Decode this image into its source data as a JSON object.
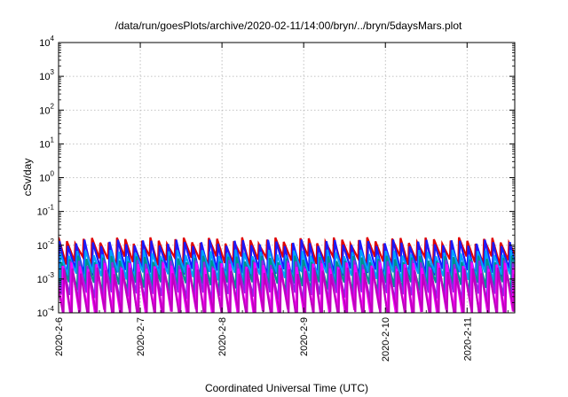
{
  "chart_data": {
    "type": "line",
    "title": "/data/run/goesPlots/archive/2020-02-11/14:00/bryn/../bryn/5daysMars.plot",
    "xlabel": "Coordinated Universal Time (UTC)",
    "ylabel": "cSv/day",
    "yscale": "log",
    "ylim": [
      0.0001,
      10000
    ],
    "y_ticks": [
      {
        "base": "10",
        "exp": "-4",
        "value": 0.0001
      },
      {
        "base": "10",
        "exp": "-3",
        "value": 0.001
      },
      {
        "base": "10",
        "exp": "-2",
        "value": 0.01
      },
      {
        "base": "10",
        "exp": "-1",
        "value": 0.1
      },
      {
        "base": "10",
        "exp": "0",
        "value": 1
      },
      {
        "base": "10",
        "exp": "1",
        "value": 10
      },
      {
        "base": "10",
        "exp": "2",
        "value": 100
      },
      {
        "base": "10",
        "exp": "3",
        "value": 1000
      },
      {
        "base": "10",
        "exp": "4",
        "value": 10000
      }
    ],
    "xlim": [
      "2020-02-06",
      "2020-02-11T14:00"
    ],
    "x_ticks": [
      {
        "label": "2020-2-6",
        "date": "2020-02-06"
      },
      {
        "label": "2020-2-7",
        "date": "2020-02-07"
      },
      {
        "label": "2020-2-8",
        "date": "2020-02-08"
      },
      {
        "label": "2020-2-9",
        "date": "2020-02-09"
      },
      {
        "label": "2020-2-10",
        "date": "2020-02-10"
      },
      {
        "label": "2020-2-11",
        "date": "2020-02-11"
      }
    ],
    "grid": true,
    "legend": "none",
    "sawtooth_period_hours": 2.45,
    "series": [
      {
        "color": "#e00000",
        "peak": 0.014,
        "trough": 0.0035
      },
      {
        "color": "#1a1aff",
        "peak": 0.012,
        "trough": 0.0015
      },
      {
        "color": "#00a0ff",
        "peak": 0.006,
        "trough": 0.0012
      },
      {
        "color": "#009090",
        "peak": 0.004,
        "trough": 0.0006
      },
      {
        "color": "#8a2be2",
        "peak": 0.003,
        "trough": 0.0003
      },
      {
        "color": "#ff00ff",
        "peak": 0.0025,
        "trough": 0.0001
      },
      {
        "color": "#c000c0",
        "peak": 0.0018,
        "trough": 8e-05
      }
    ]
  }
}
